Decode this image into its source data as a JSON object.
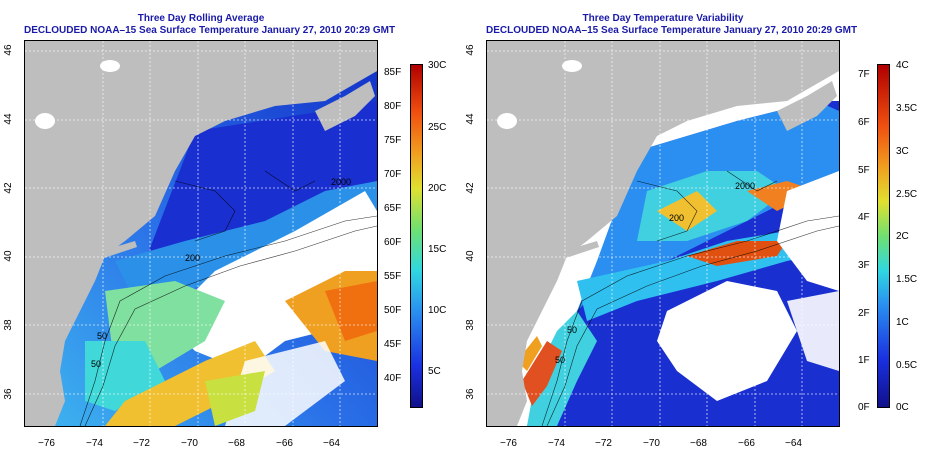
{
  "left_panel": {
    "title": "Three Day Rolling Average",
    "subtitle": "DECLOUDED NOAA–15 Sea Surface Temperature January 27, 2010 20:29 GMT",
    "x_ticks": [
      "−76",
      "−74",
      "−72",
      "−70",
      "−68",
      "−66",
      "−64"
    ],
    "y_ticks": [
      "36",
      "38",
      "40",
      "42",
      "44",
      "46"
    ],
    "colorbar_f": [
      "85F",
      "80F",
      "75F",
      "70F",
      "65F",
      "60F",
      "55F",
      "50F",
      "45F",
      "40F"
    ],
    "colorbar_c": [
      "30C",
      "25C",
      "20C",
      "15C",
      "10C",
      "5C"
    ],
    "contour_labels": [
      "2000",
      "200",
      "50",
      "50"
    ]
  },
  "right_panel": {
    "title": "Three Day Temperature Variability",
    "subtitle": "DECLOUDED NOAA–15 Sea Surface Temperature January 27, 2010 20:29 GMT",
    "x_ticks": [
      "−76",
      "−74",
      "−72",
      "−70",
      "−68",
      "−66",
      "−64"
    ],
    "y_ticks": [
      "36",
      "38",
      "40",
      "42",
      "44",
      "46"
    ],
    "colorbar_f": [
      "7F",
      "6F",
      "5F",
      "4F",
      "3F",
      "2F",
      "1F",
      "0F"
    ],
    "colorbar_c": [
      "4C",
      "3.5C",
      "3C",
      "2.5C",
      "2C",
      "1.5C",
      "1C",
      "0.5C",
      "0C"
    ],
    "contour_labels": [
      "2000",
      "200",
      "50",
      "50"
    ]
  },
  "colors": {
    "land": "#bebebe",
    "ocean_cold": "#1a2fd0",
    "ocean_warm": "#e8a020",
    "title": "#1a1aa8"
  }
}
